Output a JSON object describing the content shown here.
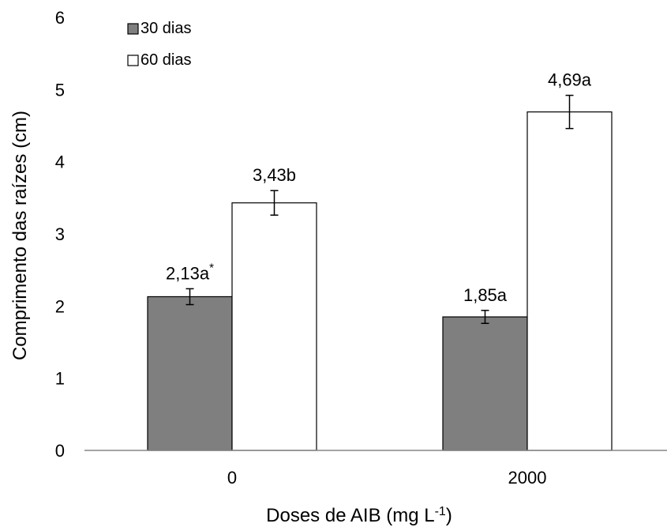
{
  "chart_data": {
    "type": "bar",
    "title": "",
    "xlabel": "Doses de AIB (mg L",
    "xlabel_superscript": "-1",
    "xlabel_suffix": ")",
    "ylabel": "Comprimento das raízes (cm)",
    "ylim": [
      0,
      6
    ],
    "yticks": [
      "0",
      "1",
      "2",
      "3",
      "4",
      "5",
      "6"
    ],
    "categories": [
      "0",
      "2000"
    ],
    "grid": false,
    "legend_position": "top-left",
    "series": [
      {
        "name": "30 dias",
        "color": "#7f7f7f",
        "values": [
          2.13,
          1.85
        ],
        "errors": [
          0.11,
          0.09
        ],
        "labels": [
          "2,13a",
          "1,85a"
        ],
        "label_superscripts": [
          "*",
          ""
        ]
      },
      {
        "name": "60 dias",
        "color": "#ffffff",
        "values": [
          3.43,
          4.69
        ],
        "errors": [
          0.17,
          0.23
        ],
        "labels": [
          "3,43b",
          "4,69a"
        ],
        "label_superscripts": [
          "",
          ""
        ]
      }
    ]
  }
}
